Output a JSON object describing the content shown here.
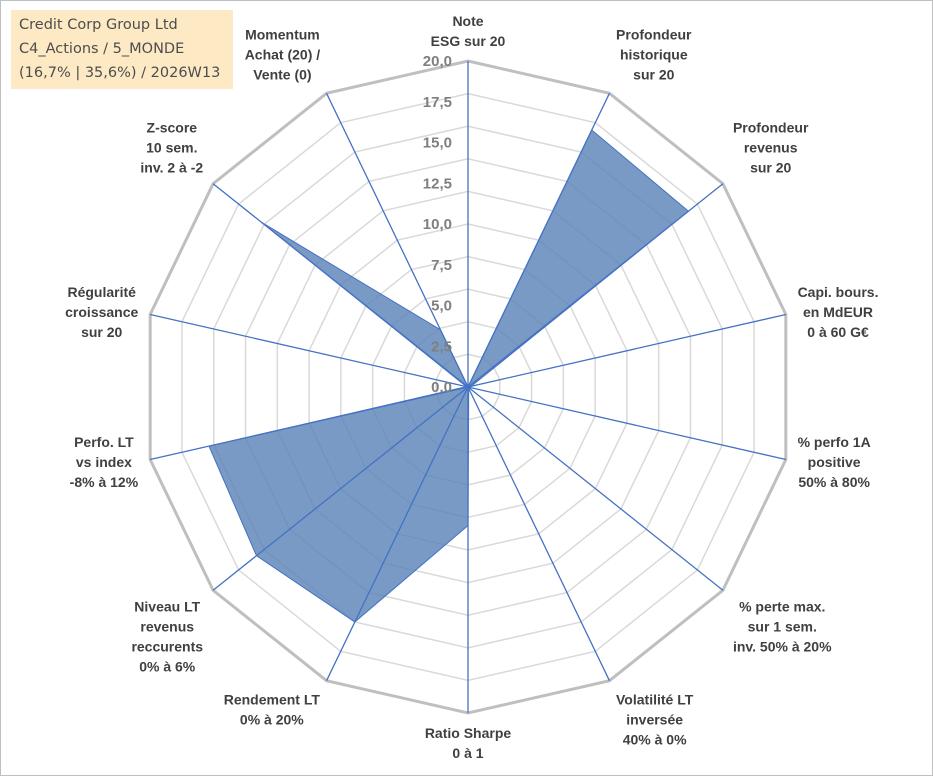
{
  "info_box": {
    "line1": "Credit Corp Group Ltd",
    "line2": "C4_Actions / 5_MONDE",
    "line3": "(16,7% | 35,6%) / 2026W13"
  },
  "colors": {
    "fill": "#5b84b8",
    "line": "#4472c4",
    "grid": "#d9d9d9",
    "outer_ring": "#bfbfbf",
    "label": "#404040",
    "tick": "#7f7f7f",
    "info_bg": "#fde9c4"
  },
  "chart_data": {
    "type": "radar",
    "scale": {
      "min": 0,
      "max": 20,
      "major": 2.5,
      "minor_rings": 10
    },
    "tick_labels": [
      "0,0",
      "2,5",
      "5,0",
      "7,5",
      "10,0",
      "12,5",
      "15,0",
      "17,5",
      "20,0"
    ],
    "axes": [
      {
        "lines": [
          "Note",
          "ESG sur 20"
        ],
        "value": 0
      },
      {
        "lines": [
          "Profondeur",
          "historique",
          "sur 20"
        ],
        "value": 17.5
      },
      {
        "lines": [
          "Profondeur",
          "revenus",
          "sur 20"
        ],
        "value": 17.3
      },
      {
        "lines": [
          "Capi. bours.",
          "en MdEUR",
          "0 à 60 G€"
        ],
        "value": 0.2
      },
      {
        "lines": [
          "% perfo 1A",
          "positive",
          "50% à 80%"
        ],
        "value": 0.1
      },
      {
        "lines": [
          "% perte max.",
          "sur 1 sem.",
          "inv. 50% à 20%"
        ],
        "value": 0.1
      },
      {
        "lines": [
          "Volatilité LT",
          "inversée",
          "40% à 0%"
        ],
        "value": 0.1
      },
      {
        "lines": [
          "Ratio Sharpe",
          "0 à 1"
        ],
        "value": 8.5
      },
      {
        "lines": [
          "Rendement LT",
          "0% à 20%"
        ],
        "value": 16.0
      },
      {
        "lines": [
          "Niveau LT",
          "revenus",
          "reccurents",
          "0% à 6%"
        ],
        "value": 16.6
      },
      {
        "lines": [
          "Perfo. LT",
          "vs index",
          "-8% à 12%"
        ],
        "value": 16.3
      },
      {
        "lines": [
          "Régularité",
          "croissance",
          "sur 20"
        ],
        "value": 0.1
      },
      {
        "lines": [
          "Z-score",
          "10 sem.",
          "inv. 2 à -2"
        ],
        "value": 16.2
      },
      {
        "lines": [
          "Momentum",
          "Achat (20) /",
          "Vente (0)"
        ],
        "value": 3.9
      }
    ]
  }
}
